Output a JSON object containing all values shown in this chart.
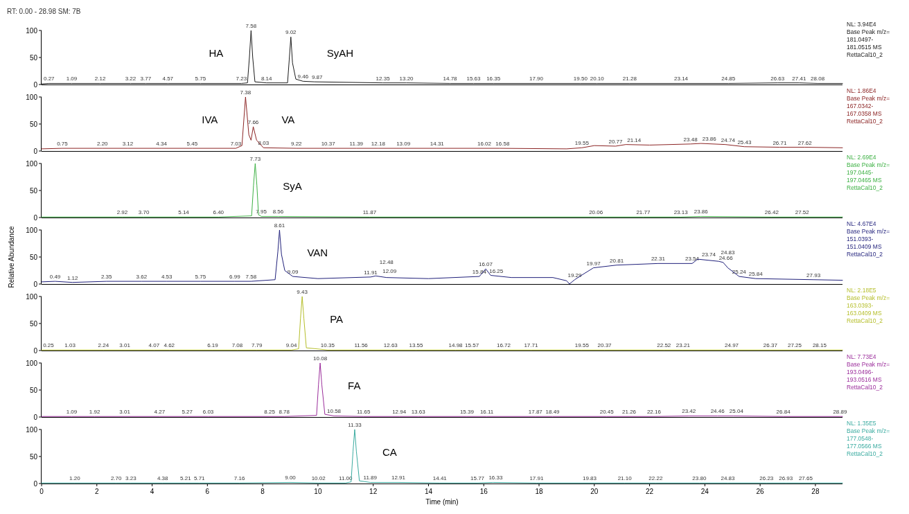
{
  "chart_data": [
    {
      "type": "line",
      "title": "RT: 0.00 - 28.98  SM: 7B",
      "xlim": [
        0,
        28.98
      ],
      "ylim": [
        0,
        100
      ],
      "yticks": [
        0,
        50,
        100
      ],
      "tick_labels": "y",
      "series": [
        {
          "color": "#1a1a1a",
          "x": [
            0,
            0.27,
            1.09,
            2.12,
            3.22,
            3.77,
            4.57,
            5.75,
            7.23,
            7.45,
            7.52,
            7.58,
            7.64,
            7.72,
            8.14,
            8.9,
            8.96,
            9.02,
            9.08,
            9.2,
            9.46,
            9.87,
            12.35,
            13.2,
            14.78,
            15.63,
            16.35,
            17.9,
            19.5,
            20.1,
            21.28,
            23.14,
            24.85,
            26.63,
            27.41,
            28.08,
            28.98
          ],
          "values": [
            1,
            2,
            2,
            2,
            2,
            2,
            2,
            2,
            2,
            3,
            50,
            100,
            50,
            5,
            3,
            3,
            45,
            88,
            40,
            10,
            6,
            5,
            3,
            3,
            2,
            2,
            2,
            2,
            2,
            2,
            2,
            2,
            2,
            3,
            3,
            2,
            2
          ]
        }
      ],
      "annotations": [
        "NL: 3.94E4",
        "Base Peak m/z=",
        "181.0497-",
        "181.0515  MS",
        "RettaCal10_2",
        {
          "text": "0.27",
          "x": 0.27,
          "y": 2
        },
        {
          "text": "1.09",
          "x": 1.09,
          "y": 2
        },
        {
          "text": "2.12",
          "x": 2.12,
          "y": 2
        },
        {
          "text": "3.22",
          "x": 3.22,
          "y": 2
        },
        {
          "text": "3.77",
          "x": 3.77,
          "y": 2
        },
        {
          "text": "4.57",
          "x": 4.57,
          "y": 2
        },
        {
          "text": "5.75",
          "x": 5.75,
          "y": 2
        },
        {
          "text": "7.23",
          "x": 7.23,
          "y": 2
        },
        {
          "text": "7.58",
          "x": 7.58,
          "y": 100
        },
        {
          "text": "8.14",
          "x": 8.14,
          "y": 3
        },
        {
          "text": "9.02",
          "x": 9.02,
          "y": 88
        },
        {
          "text": "9.46",
          "x": 9.46,
          "y": 6
        },
        {
          "text": "9.87",
          "x": 9.87,
          "y": 5
        },
        {
          "text": "12.35",
          "x": 12.35,
          "y": 3
        },
        {
          "text": "13.20",
          "x": 13.2,
          "y": 3
        },
        {
          "text": "14.78",
          "x": 14.78,
          "y": 2
        },
        {
          "text": "15.63",
          "x": 15.63,
          "y": 2
        },
        {
          "text": "16.35",
          "x": 16.35,
          "y": 2
        },
        {
          "text": "17.90",
          "x": 17.9,
          "y": 2
        },
        {
          "text": "19.50",
          "x": 19.5,
          "y": 2
        },
        {
          "text": "20.10",
          "x": 20.1,
          "y": 2
        },
        {
          "text": "21.28",
          "x": 21.28,
          "y": 2
        },
        {
          "text": "23.14",
          "x": 23.14,
          "y": 2
        },
        {
          "text": "24.85",
          "x": 24.85,
          "y": 2
        },
        {
          "text": "26.63",
          "x": 26.63,
          "y": 3
        },
        {
          "text": "27.41",
          "x": 27.41,
          "y": 3
        },
        {
          "text": "28.08",
          "x": 28.08,
          "y": 2
        },
        "HA",
        "SyAH"
      ]
    },
    {
      "type": "line",
      "xlim": [
        0,
        28.98
      ],
      "ylim": [
        0,
        100
      ],
      "yticks": [
        0,
        50,
        100
      ],
      "tick_labels": "y",
      "series": [
        {
          "color": "#8b2323",
          "x": [
            0,
            0.75,
            2.2,
            3.12,
            4.34,
            5.45,
            7.03,
            7.25,
            7.38,
            7.5,
            7.58,
            7.66,
            7.78,
            8.03,
            9.22,
            10.37,
            11.39,
            12.18,
            13.09,
            14.31,
            16.02,
            16.58,
            19.0,
            19.55,
            20.0,
            20.77,
            21.14,
            22.0,
            23.48,
            23.86,
            24.74,
            25.43,
            26.71,
            27.62,
            28.98
          ],
          "values": [
            4,
            5,
            5,
            5,
            5,
            5,
            5,
            10,
            100,
            30,
            20,
            45,
            20,
            6,
            5,
            5,
            5,
            5,
            5,
            5,
            5,
            5,
            4,
            6,
            10,
            9,
            12,
            11,
            13,
            14,
            12,
            8,
            7,
            7,
            6
          ]
        }
      ],
      "annotations": [
        "NL: 1.86E4",
        "Base Peak m/z=",
        "167.0342-",
        "167.0358  MS",
        "RettaCal10_2",
        {
          "text": "0.75",
          "x": 0.75,
          "y": 5
        },
        {
          "text": "2.20",
          "x": 2.2,
          "y": 5
        },
        {
          "text": "3.12",
          "x": 3.12,
          "y": 5
        },
        {
          "text": "4.34",
          "x": 4.34,
          "y": 5
        },
        {
          "text": "5.45",
          "x": 5.45,
          "y": 5
        },
        {
          "text": "7.03",
          "x": 7.03,
          "y": 5
        },
        {
          "text": "7.38",
          "x": 7.38,
          "y": 100
        },
        {
          "text": "7.66",
          "x": 7.66,
          "y": 45
        },
        {
          "text": "8.03",
          "x": 8.03,
          "y": 6
        },
        {
          "text": "9.22",
          "x": 9.22,
          "y": 5
        },
        {
          "text": "10.37",
          "x": 10.37,
          "y": 5
        },
        {
          "text": "11.39",
          "x": 11.39,
          "y": 5
        },
        {
          "text": "12.18",
          "x": 12.18,
          "y": 5
        },
        {
          "text": "13.09",
          "x": 13.09,
          "y": 5
        },
        {
          "text": "14.31",
          "x": 14.31,
          "y": 5
        },
        {
          "text": "16.02",
          "x": 16.02,
          "y": 5
        },
        {
          "text": "16.58",
          "x": 16.58,
          "y": 5
        },
        {
          "text": "19.55",
          "x": 19.55,
          "y": 6
        },
        {
          "text": "20.77",
          "x": 20.77,
          "y": 9
        },
        {
          "text": "21.14",
          "x": 21.14,
          "y": 12
        },
        {
          "text": "23.48",
          "x": 23.48,
          "y": 13
        },
        {
          "text": "23.86",
          "x": 23.86,
          "y": 14
        },
        {
          "text": "24.74",
          "x": 24.74,
          "y": 12
        },
        {
          "text": "25.43",
          "x": 25.43,
          "y": 8
        },
        {
          "text": "26.71",
          "x": 26.71,
          "y": 7
        },
        {
          "text": "27.62",
          "x": 27.62,
          "y": 7
        },
        "IVA",
        "VA"
      ]
    },
    {
      "type": "line",
      "xlim": [
        0,
        28.98
      ],
      "ylim": [
        0,
        100
      ],
      "yticks": [
        0,
        50,
        100
      ],
      "tick_labels": "y",
      "series": [
        {
          "color": "#3cb043",
          "x": [
            0,
            2.92,
            3.7,
            5.14,
            6.4,
            7.6,
            7.67,
            7.73,
            7.79,
            7.85,
            7.95,
            8.56,
            11.87,
            20.06,
            21.77,
            23.13,
            23.86,
            26.42,
            27.52,
            28.98
          ],
          "values": [
            1,
            1,
            1,
            1,
            1,
            3,
            60,
            100,
            60,
            5,
            2,
            2,
            1,
            1,
            1,
            1,
            2,
            1,
            1,
            1
          ]
        }
      ],
      "annotations": [
        "NL: 2.69E4",
        "Base Peak m/z=",
        "197.0445-",
        "197.0465  MS",
        "RettaCal10_2",
        {
          "text": "2.92",
          "x": 2.92,
          "y": 1
        },
        {
          "text": "3.70",
          "x": 3.7,
          "y": 1
        },
        {
          "text": "5.14",
          "x": 5.14,
          "y": 1
        },
        {
          "text": "6.40",
          "x": 6.4,
          "y": 1
        },
        {
          "text": "7.73",
          "x": 7.73,
          "y": 100
        },
        {
          "text": "7.95",
          "x": 7.95,
          "y": 2
        },
        {
          "text": "8.56",
          "x": 8.56,
          "y": 2
        },
        {
          "text": "11.87",
          "x": 11.87,
          "y": 1
        },
        {
          "text": "20.06",
          "x": 20.06,
          "y": 1
        },
        {
          "text": "21.77",
          "x": 21.77,
          "y": 1
        },
        {
          "text": "23.13",
          "x": 23.13,
          "y": 1
        },
        {
          "text": "23.86",
          "x": 23.86,
          "y": 2
        },
        {
          "text": "26.42",
          "x": 26.42,
          "y": 1
        },
        {
          "text": "27.52",
          "x": 27.52,
          "y": 1
        },
        "SyA"
      ]
    },
    {
      "type": "line",
      "ylabel": "Relative Abundance",
      "xlim": [
        0,
        28.98
      ],
      "ylim": [
        0,
        100
      ],
      "yticks": [
        0,
        50,
        100
      ],
      "tick_labels": "y",
      "series": [
        {
          "color": "#1f1f7a",
          "x": [
            0,
            0.49,
            1.12,
            2.35,
            3.62,
            4.53,
            5.75,
            6.99,
            7.58,
            8.45,
            8.55,
            8.61,
            8.68,
            8.8,
            9.09,
            10.0,
            11.91,
            12.09,
            12.48,
            14.0,
            15.84,
            16.07,
            16.25,
            17.0,
            18.5,
            19.0,
            19.1,
            19.29,
            19.5,
            19.97,
            20.81,
            22.31,
            23.54,
            23.74,
            24.5,
            24.66,
            24.83,
            25.24,
            25.84,
            27.93,
            28.98
          ],
          "values": [
            4,
            5,
            3,
            5,
            5,
            5,
            5,
            5,
            5,
            8,
            60,
            100,
            55,
            25,
            14,
            10,
            13,
            15,
            12,
            10,
            14,
            28,
            16,
            12,
            12,
            6,
            0,
            8,
            15,
            30,
            35,
            38,
            38,
            46,
            42,
            40,
            30,
            14,
            10,
            8,
            7
          ]
        }
      ],
      "annotations": [
        "NL: 4.67E4",
        "Base Peak m/z=",
        "151.0393-",
        "151.0409  MS",
        "RettaCal10_2",
        {
          "text": "0.49",
          "x": 0.49,
          "y": 5
        },
        {
          "text": "1.12",
          "x": 1.12,
          "y": 3
        },
        {
          "text": "2.35",
          "x": 2.35,
          "y": 5
        },
        {
          "text": "3.62",
          "x": 3.62,
          "y": 5
        },
        {
          "text": "4.53",
          "x": 4.53,
          "y": 5
        },
        {
          "text": "5.75",
          "x": 5.75,
          "y": 5
        },
        {
          "text": "6.99",
          "x": 6.99,
          "y": 5
        },
        {
          "text": "7.58",
          "x": 7.58,
          "y": 5
        },
        {
          "text": "8.61",
          "x": 8.61,
          "y": 100
        },
        {
          "text": "9.09",
          "x": 9.09,
          "y": 14
        },
        {
          "text": "11.91",
          "x": 11.91,
          "y": 13
        },
        {
          "text": "12.09",
          "x": 12.09,
          "y": 15
        },
        {
          "text": "12.48",
          "x": 12.48,
          "y": 12
        },
        {
          "text": "15.84",
          "x": 15.84,
          "y": 14
        },
        {
          "text": "16.07",
          "x": 16.07,
          "y": 28
        },
        {
          "text": "16.25",
          "x": 16.25,
          "y": 16
        },
        {
          "text": "19.29",
          "x": 19.29,
          "y": 8
        },
        {
          "text": "19.97",
          "x": 19.97,
          "y": 30
        },
        {
          "text": "20.81",
          "x": 20.81,
          "y": 35
        },
        {
          "text": "22.31",
          "x": 22.31,
          "y": 38
        },
        {
          "text": "23.54",
          "x": 23.54,
          "y": 38
        },
        {
          "text": "23.74",
          "x": 23.74,
          "y": 46
        },
        {
          "text": "24.66",
          "x": 24.66,
          "y": 40
        },
        {
          "text": "24.83",
          "x": 24.83,
          "y": 30
        },
        {
          "text": "25.24",
          "x": 25.24,
          "y": 14
        },
        {
          "text": "25.84",
          "x": 25.84,
          "y": 10
        },
        {
          "text": "27.93",
          "x": 27.93,
          "y": 8
        },
        "VAN"
      ]
    },
    {
      "type": "line",
      "xlim": [
        0,
        28.98
      ],
      "ylim": [
        0,
        100
      ],
      "yticks": [
        0,
        50,
        100
      ],
      "tick_labels": "y",
      "series": [
        {
          "color": "#b5be2a",
          "x": [
            0,
            0.25,
            1.03,
            2.24,
            3.01,
            4.07,
            4.62,
            6.19,
            7.08,
            7.79,
            9.04,
            9.3,
            9.37,
            9.43,
            9.49,
            9.58,
            10.35,
            11.56,
            12.63,
            13.55,
            14.98,
            15.57,
            16.72,
            17.71,
            19.55,
            20.37,
            22.52,
            23.21,
            24.97,
            26.37,
            27.25,
            28.15,
            28.98
          ],
          "values": [
            1,
            1,
            1,
            1,
            1,
            1,
            1,
            1,
            1,
            1,
            1,
            3,
            60,
            100,
            60,
            5,
            1,
            1,
            1,
            1,
            1,
            1,
            1,
            1,
            1,
            1,
            1,
            1,
            1,
            1,
            1,
            1,
            1
          ]
        }
      ],
      "annotations": [
        "NL: 2.18E5",
        "Base Peak m/z=",
        "163.0393-",
        "163.0409  MS",
        "RettaCal10_2",
        {
          "text": "0.25",
          "x": 0.25,
          "y": 1
        },
        {
          "text": "1.03",
          "x": 1.03,
          "y": 1
        },
        {
          "text": "2.24",
          "x": 2.24,
          "y": 1
        },
        {
          "text": "3.01",
          "x": 3.01,
          "y": 1
        },
        {
          "text": "4.07",
          "x": 4.07,
          "y": 1
        },
        {
          "text": "4.62",
          "x": 4.62,
          "y": 1
        },
        {
          "text": "6.19",
          "x": 6.19,
          "y": 1
        },
        {
          "text": "7.08",
          "x": 7.08,
          "y": 1
        },
        {
          "text": "7.79",
          "x": 7.79,
          "y": 1
        },
        {
          "text": "9.04",
          "x": 9.04,
          "y": 1
        },
        {
          "text": "9.43",
          "x": 9.43,
          "y": 100
        },
        {
          "text": "10.35",
          "x": 10.35,
          "y": 1
        },
        {
          "text": "11.56",
          "x": 11.56,
          "y": 1
        },
        {
          "text": "12.63",
          "x": 12.63,
          "y": 1
        },
        {
          "text": "13.55",
          "x": 13.55,
          "y": 1
        },
        {
          "text": "14.98",
          "x": 14.98,
          "y": 1
        },
        {
          "text": "15.57",
          "x": 15.57,
          "y": 1
        },
        {
          "text": "16.72",
          "x": 16.72,
          "y": 1
        },
        {
          "text": "17.71",
          "x": 17.71,
          "y": 1
        },
        {
          "text": "19.55",
          "x": 19.55,
          "y": 1
        },
        {
          "text": "20.37",
          "x": 20.37,
          "y": 1
        },
        {
          "text": "22.52",
          "x": 22.52,
          "y": 1
        },
        {
          "text": "23.21",
          "x": 23.21,
          "y": 1
        },
        {
          "text": "24.97",
          "x": 24.97,
          "y": 1
        },
        {
          "text": "26.37",
          "x": 26.37,
          "y": 1
        },
        {
          "text": "27.25",
          "x": 27.25,
          "y": 1
        },
        {
          "text": "28.15",
          "x": 28.15,
          "y": 1
        },
        "PA"
      ]
    },
    {
      "type": "line",
      "xlim": [
        0,
        28.98
      ],
      "ylim": [
        0,
        100
      ],
      "yticks": [
        0,
        50,
        100
      ],
      "tick_labels": "y",
      "series": [
        {
          "color": "#9b2d9b",
          "x": [
            0,
            1.09,
            1.92,
            3.01,
            4.27,
            5.27,
            6.03,
            8.25,
            8.78,
            9.95,
            10.02,
            10.08,
            10.14,
            10.25,
            10.58,
            11.65,
            12.94,
            13.63,
            15.39,
            16.11,
            17.87,
            18.49,
            20.45,
            21.26,
            22.16,
            23.42,
            24.46,
            25.04,
            26.84,
            28.89,
            28.98
          ],
          "values": [
            1,
            1,
            1,
            1,
            1,
            1,
            1,
            1,
            1,
            3,
            60,
            100,
            60,
            5,
            2,
            1,
            1,
            1,
            1,
            1,
            1,
            1,
            1,
            1,
            1,
            2,
            2,
            2,
            1,
            1,
            1
          ]
        }
      ],
      "annotations": [
        "NL: 7.73E4",
        "Base Peak m/z=",
        "193.0496-",
        "193.0516  MS",
        "RettaCal10_2",
        {
          "text": "1.09",
          "x": 1.09,
          "y": 1
        },
        {
          "text": "1.92",
          "x": 1.92,
          "y": 1
        },
        {
          "text": "3.01",
          "x": 3.01,
          "y": 1
        },
        {
          "text": "4.27",
          "x": 4.27,
          "y": 1
        },
        {
          "text": "5.27",
          "x": 5.27,
          "y": 1
        },
        {
          "text": "6.03",
          "x": 6.03,
          "y": 1
        },
        {
          "text": "8.25",
          "x": 8.25,
          "y": 1
        },
        {
          "text": "8.78",
          "x": 8.78,
          "y": 1
        },
        {
          "text": "10.08",
          "x": 10.08,
          "y": 100
        },
        {
          "text": "10.58",
          "x": 10.58,
          "y": 2
        },
        {
          "text": "11.65",
          "x": 11.65,
          "y": 1
        },
        {
          "text": "12.94",
          "x": 12.94,
          "y": 1
        },
        {
          "text": "13.63",
          "x": 13.63,
          "y": 1
        },
        {
          "text": "15.39",
          "x": 15.39,
          "y": 1
        },
        {
          "text": "16.11",
          "x": 16.11,
          "y": 1
        },
        {
          "text": "17.87",
          "x": 17.87,
          "y": 1
        },
        {
          "text": "18.49",
          "x": 18.49,
          "y": 1
        },
        {
          "text": "20.45",
          "x": 20.45,
          "y": 1
        },
        {
          "text": "21.26",
          "x": 21.26,
          "y": 1
        },
        {
          "text": "22.16",
          "x": 22.16,
          "y": 1
        },
        {
          "text": "23.42",
          "x": 23.42,
          "y": 2
        },
        {
          "text": "24.46",
          "x": 24.46,
          "y": 2
        },
        {
          "text": "25.04",
          "x": 25.04,
          "y": 2
        },
        {
          "text": "26.84",
          "x": 26.84,
          "y": 1
        },
        {
          "text": "28.89",
          "x": 28.89,
          "y": 1
        },
        "FA"
      ]
    },
    {
      "type": "line",
      "xlabel": "Time (min)",
      "xlim": [
        0,
        28.98
      ],
      "ylim": [
        0,
        100
      ],
      "yticks": [
        0,
        50,
        100
      ],
      "xticks": [
        0,
        2,
        4,
        6,
        8,
        10,
        12,
        14,
        16,
        18,
        20,
        22,
        24,
        26,
        28
      ],
      "series": [
        {
          "color": "#3aaba0",
          "x": [
            0,
            1.2,
            2.7,
            3.23,
            4.38,
            5.21,
            5.71,
            7.16,
            9.0,
            10.02,
            11.0,
            11.2,
            11.27,
            11.33,
            11.39,
            11.5,
            11.89,
            12.91,
            14.41,
            15.77,
            16.33,
            17.91,
            19.83,
            21.1,
            22.22,
            23.8,
            24.83,
            26.23,
            26.93,
            27.65,
            28.98
          ],
          "values": [
            1,
            1,
            1,
            1,
            1,
            1,
            1,
            1,
            2,
            1,
            1,
            3,
            60,
            100,
            60,
            5,
            2,
            2,
            1,
            1,
            2,
            1,
            1,
            1,
            1,
            1,
            1,
            1,
            1,
            1,
            1
          ]
        }
      ],
      "annotations": [
        "NL: 1.35E5",
        "Base Peak m/z=",
        "177.0548-",
        "177.0566  MS",
        "RettaCal10_2",
        {
          "text": "1.20",
          "x": 1.2,
          "y": 1
        },
        {
          "text": "2.70",
          "x": 2.7,
          "y": 1
        },
        {
          "text": "3.23",
          "x": 3.23,
          "y": 1
        },
        {
          "text": "4.38",
          "x": 4.38,
          "y": 1
        },
        {
          "text": "5.21",
          "x": 5.21,
          "y": 1
        },
        {
          "text": "5.71",
          "x": 5.71,
          "y": 1
        },
        {
          "text": "7.16",
          "x": 7.16,
          "y": 1
        },
        {
          "text": "9.00",
          "x": 9.0,
          "y": 2
        },
        {
          "text": "10.02",
          "x": 10.02,
          "y": 1
        },
        {
          "text": "11.00",
          "x": 11.0,
          "y": 1
        },
        {
          "text": "11.33",
          "x": 11.33,
          "y": 100
        },
        {
          "text": "11.89",
          "x": 11.89,
          "y": 2
        },
        {
          "text": "12.91",
          "x": 12.91,
          "y": 2
        },
        {
          "text": "14.41",
          "x": 14.41,
          "y": 1
        },
        {
          "text": "15.77",
          "x": 15.77,
          "y": 1
        },
        {
          "text": "16.33",
          "x": 16.33,
          "y": 2
        },
        {
          "text": "17.91",
          "x": 17.91,
          "y": 1
        },
        {
          "text": "19.83",
          "x": 19.83,
          "y": 1
        },
        {
          "text": "21.10",
          "x": 21.1,
          "y": 1
        },
        {
          "text": "22.22",
          "x": 22.22,
          "y": 1
        },
        {
          "text": "23.80",
          "x": 23.8,
          "y": 1
        },
        {
          "text": "24.83",
          "x": 24.83,
          "y": 1
        },
        {
          "text": "26.23",
          "x": 26.23,
          "y": 1
        },
        {
          "text": "26.93",
          "x": 26.93,
          "y": 1
        },
        {
          "text": "27.65",
          "x": 27.65,
          "y": 1
        },
        "CA"
      ]
    }
  ]
}
